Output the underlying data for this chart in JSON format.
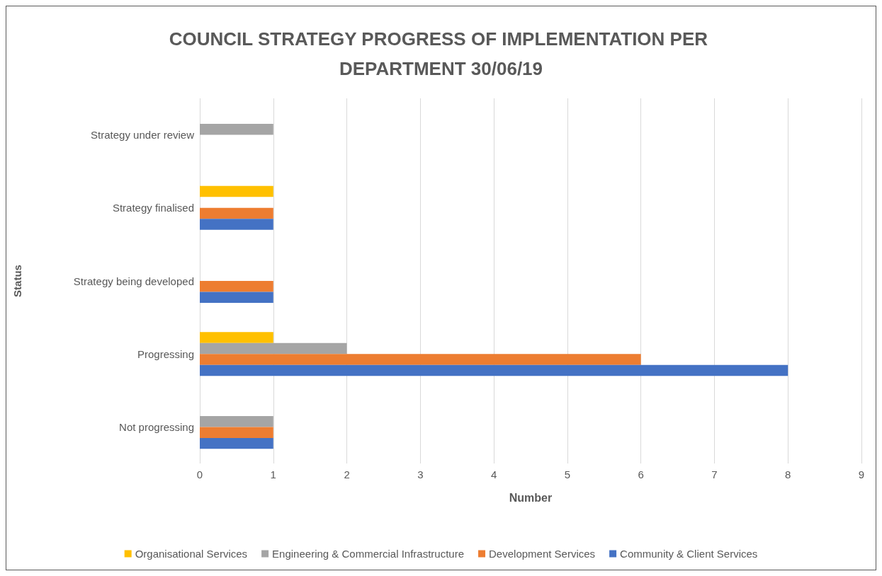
{
  "chart_data": {
    "type": "bar",
    "orientation": "horizontal",
    "title": "COUNCIL STRATEGY PROGRESS OF IMPLEMENTATION PER DEPARTMENT 30/06/19",
    "xlabel": "Number",
    "ylabel": "Status",
    "categories": [
      "Strategy under review",
      "Strategy finalised",
      "Strategy being developed",
      "Progressing",
      "Not progressing"
    ],
    "series": [
      {
        "name": "Organisational Services",
        "color": "#ffc000",
        "values": [
          null,
          1,
          null,
          1,
          null
        ]
      },
      {
        "name": "Engineering & Commercial Infrastructure",
        "color": "#a5a5a5",
        "values": [
          1,
          null,
          null,
          2,
          1
        ]
      },
      {
        "name": "Development Services",
        "color": "#ed7d31",
        "values": [
          null,
          1,
          1,
          6,
          1
        ]
      },
      {
        "name": "Community & Client Services",
        "color": "#4472c4",
        "values": [
          null,
          1,
          1,
          8,
          1
        ]
      }
    ],
    "xlim": [
      0,
      9
    ],
    "xticks": [
      0,
      1,
      2,
      3,
      4,
      5,
      6,
      7,
      8,
      9
    ],
    "grid": "x",
    "legend": "bottom"
  }
}
